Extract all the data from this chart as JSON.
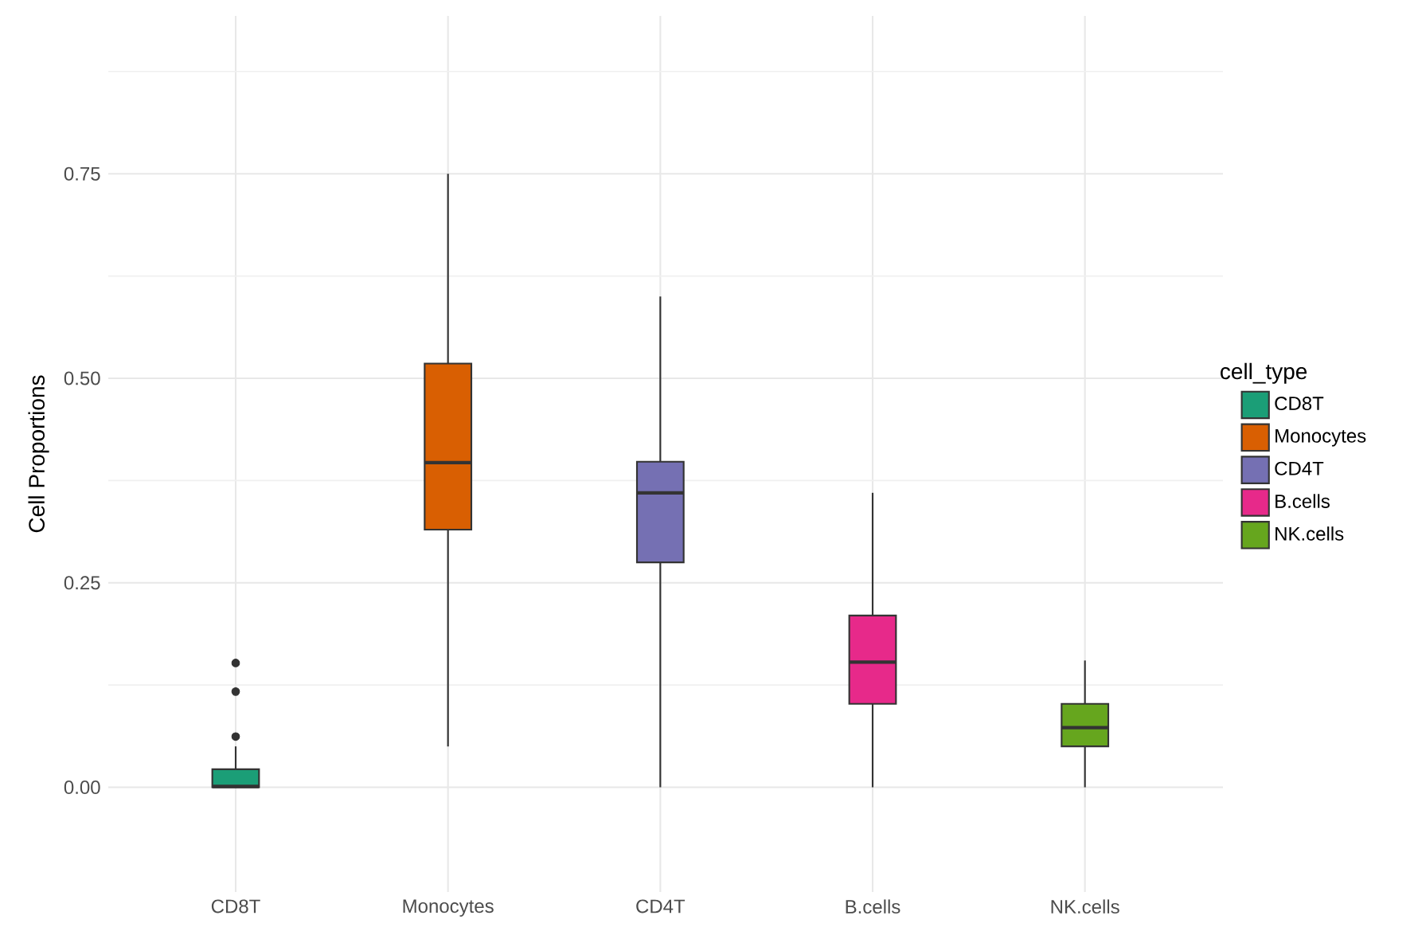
{
  "chart_data": {
    "type": "box",
    "ylabel": "Cell Proportions",
    "legend_title": "cell_type",
    "legend": "right",
    "grid": true,
    "categories": [
      "CD8T",
      "Monocytes",
      "CD4T",
      "B.cells",
      "NK.cells"
    ],
    "series": [
      {
        "name": "CD8T",
        "color": "#1b9e77",
        "boxes": [
          {
            "low": 0.0,
            "q1": 0.0,
            "median": 0.001,
            "q3": 0.022,
            "high": 0.05,
            "outliers": [
              0.062,
              0.117,
              0.152
            ]
          },
          null,
          null,
          null,
          null
        ]
      },
      {
        "name": "Monocytes",
        "color": "#d95f02",
        "boxes": [
          null,
          {
            "low": 0.05,
            "q1": 0.315,
            "median": 0.397,
            "q3": 0.518,
            "high": 0.75
          },
          null,
          null,
          null
        ]
      },
      {
        "name": "CD4T",
        "color": "#7570b3",
        "boxes": [
          null,
          null,
          {
            "low": 0.0,
            "q1": 0.275,
            "median": 0.36,
            "q3": 0.398,
            "high": 0.6
          },
          null,
          null
        ]
      },
      {
        "name": "B.cells",
        "color": "#e7298a",
        "boxes": [
          null,
          null,
          null,
          {
            "low": 0.0,
            "q1": 0.102,
            "median": 0.153,
            "q3": 0.21,
            "high": 0.36
          },
          null
        ]
      },
      {
        "name": "NK.cells",
        "color": "#66a61e",
        "boxes": [
          null,
          null,
          null,
          null,
          {
            "low": 0.0,
            "q1": 0.05,
            "median": 0.073,
            "q3": 0.102,
            "high": 0.155
          }
        ]
      }
    ],
    "ylim": [
      -0.128,
      0.943
    ],
    "yticks": [
      {
        "value": 0,
        "label": "0.00"
      },
      {
        "value": 0.125,
        "label": null
      },
      0.25,
      {
        "value": 0.375,
        "label": null
      },
      {
        "value": 0.5,
        "label": "0.50"
      },
      {
        "value": 0.625,
        "label": null
      },
      0.75,
      {
        "value": 0.875,
        "label": null
      }
    ]
  }
}
